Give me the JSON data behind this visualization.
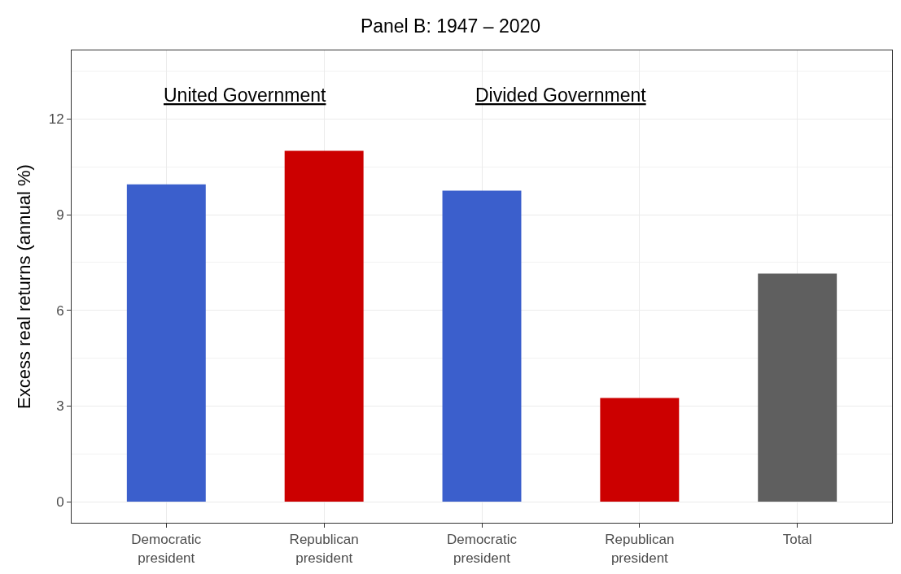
{
  "chart_data": {
    "type": "bar",
    "title": "Panel B: 1947 – 2020",
    "ylabel": "Excess real returns (annual %)",
    "categories": [
      "Democratic president",
      "Republican president",
      "Democratic president",
      "Republican president",
      "Total"
    ],
    "values": [
      9.95,
      11.0,
      9.75,
      3.25,
      7.15
    ],
    "colors": [
      "#3b5fcc",
      "#cc0000",
      "#3b5fcc",
      "#cc0000",
      "#5f5f5f"
    ],
    "ylim": [
      -0.66,
      14.15
    ],
    "yticks": [
      0,
      3,
      6,
      9,
      12
    ],
    "grid": true,
    "annotations": [
      "United Government",
      "Divided Government"
    ]
  }
}
